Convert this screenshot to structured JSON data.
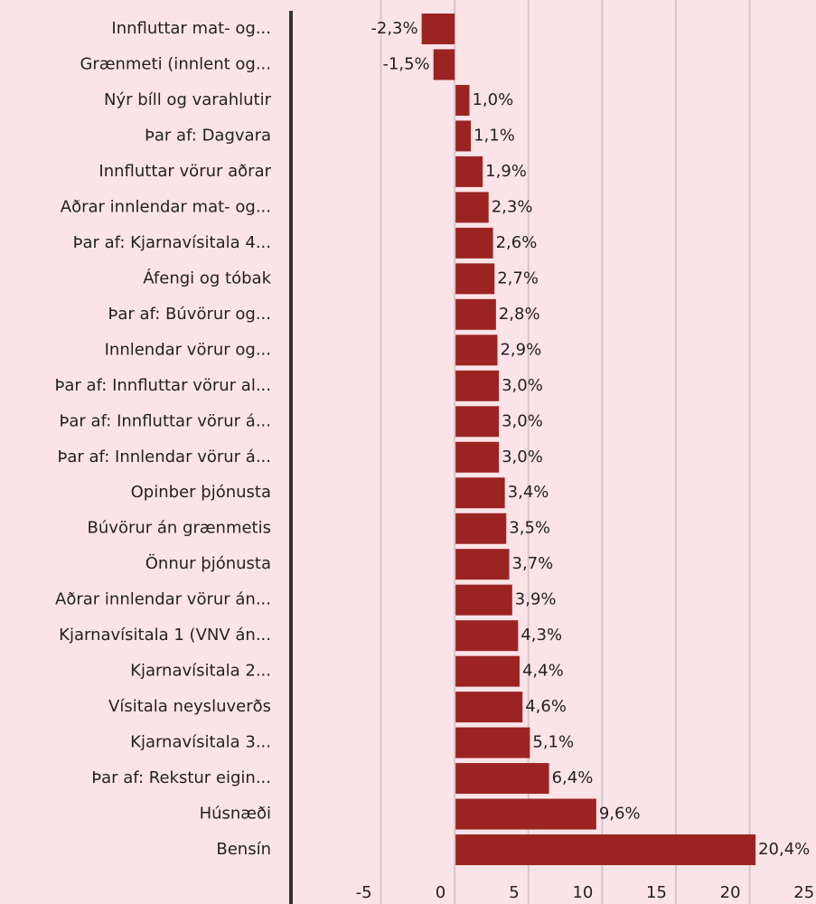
{
  "chart_data": {
    "type": "barh",
    "categories": [
      "Innfluttar mat- og...",
      "Grænmeti (innlent og...",
      "Nýr bíll og varahlutir",
      "Þar af: Dagvara",
      "Innfluttar vörur aðrar",
      "Aðrar innlendar mat- og...",
      "Þar af: Kjarnavísitala 4...",
      "Áfengi og tóbak",
      "Þar af: Búvörur og...",
      "Innlendar vörur og...",
      "Þar af: Innfluttar vörur al...",
      "Þar af: Innfluttar vörur á...",
      "Þar af: Innlendar vörur á...",
      "Opinber þjónusta",
      "Búvörur án grænmetis",
      "Önnur þjónusta",
      "Aðrar innlendar vörur án...",
      "Kjarnavísitala 1 (VNV án...",
      "Kjarnavísitala 2...",
      "Vísitala neysluverðs",
      "Kjarnavísitala 3...",
      "Þar af: Rekstur eigin...",
      "Húsnæði",
      "Bensín"
    ],
    "values": [
      -2.3,
      -1.5,
      1.0,
      1.1,
      1.9,
      2.3,
      2.6,
      2.7,
      2.8,
      2.9,
      3.0,
      3.0,
      3.0,
      3.4,
      3.5,
      3.7,
      3.9,
      4.3,
      4.4,
      4.6,
      5.1,
      6.4,
      9.6,
      20.4
    ],
    "value_labels": [
      "-2,3%",
      "-1,5%",
      "1,0%",
      "1,1%",
      "1,9%",
      "2,3%",
      "2,6%",
      "2,7%",
      "2,8%",
      "2,9%",
      "3,0%",
      "3,0%",
      "3,0%",
      "3,4%",
      "3,5%",
      "3,7%",
      "3,9%",
      "4,3%",
      "4,4%",
      "4,6%",
      "5,1%",
      "6,4%",
      "9,6%",
      "20,4%"
    ],
    "color": "#9b2423",
    "xlim": [
      -11.1,
      24.5
    ],
    "xticks": [
      -5,
      0,
      5,
      10,
      15,
      20,
      25
    ],
    "grid": true
  }
}
